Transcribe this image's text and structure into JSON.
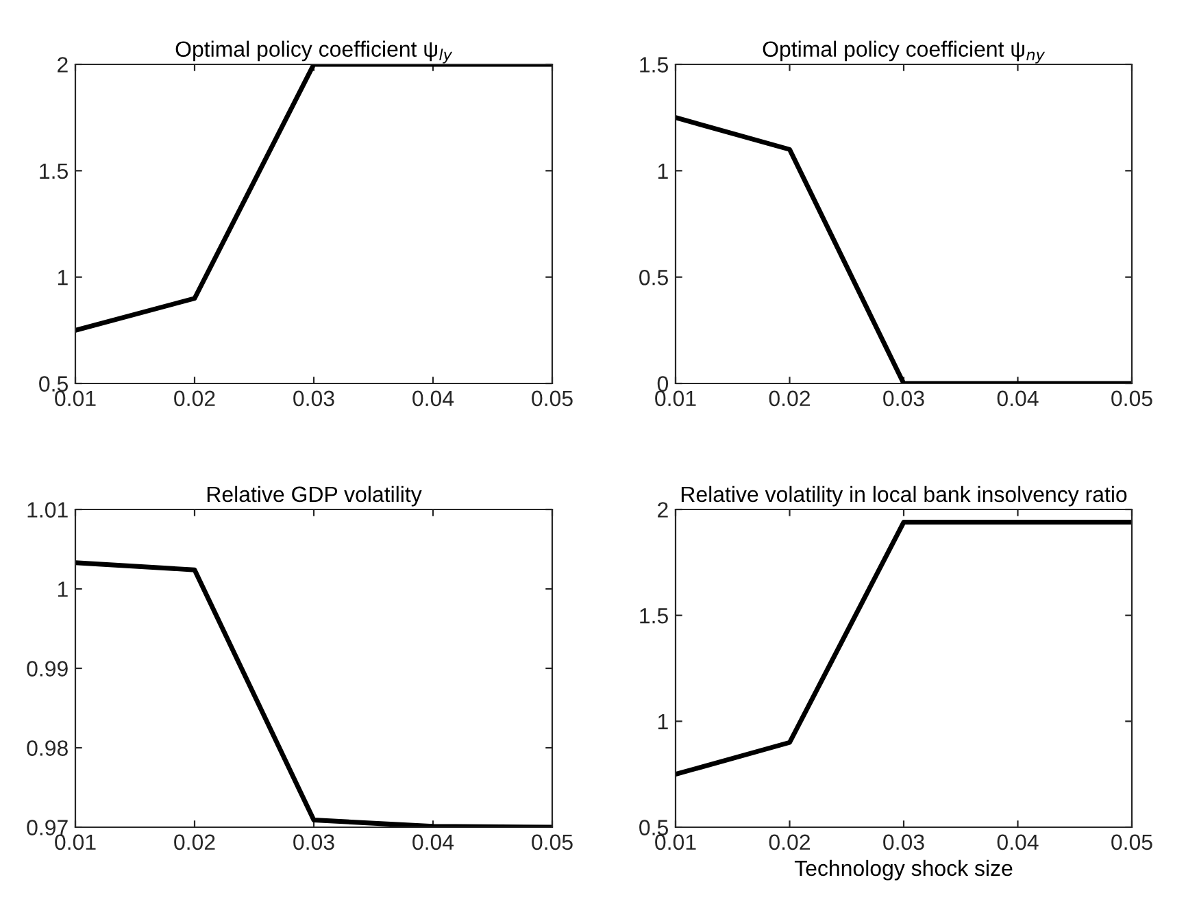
{
  "chart_data": [
    {
      "type": "line",
      "title": "Optimal policy coefficient ψ$_{ly}$",
      "x": [
        0.01,
        0.02,
        0.03,
        0.04,
        0.05
      ],
      "series": [
        {
          "color": "#000000",
          "values": [
            0.75,
            0.9,
            2,
            2,
            2
          ]
        }
      ],
      "xlim": [
        0.01,
        0.05
      ],
      "xticks": [
        0.01,
        0.02,
        0.03,
        0.04,
        0.05
      ],
      "ylim": [
        0.5,
        2
      ],
      "yticks": [
        0.5,
        1,
        1.5,
        2
      ],
      "grid": false,
      "legend": false,
      "marker": "none",
      "line_style": "solid"
    },
    {
      "type": "line",
      "title": "Optimal policy coefficient ψ$_{ny}$",
      "x": [
        0.01,
        0.02,
        0.03,
        0.04,
        0.05
      ],
      "series": [
        {
          "color": "#000000",
          "values": [
            1.25,
            1.1,
            0,
            0,
            0
          ]
        }
      ],
      "xlim": [
        0.01,
        0.05
      ],
      "xticks": [
        0.01,
        0.02,
        0.03,
        0.04,
        0.05
      ],
      "ylim": [
        0,
        1.5
      ],
      "yticks": [
        0,
        0.5,
        1,
        1.5
      ],
      "grid": false,
      "legend": false,
      "marker": "none",
      "line_style": "solid"
    },
    {
      "type": "line",
      "title": "Relative GDP volatility",
      "x": [
        0.01,
        0.02,
        0.03,
        0.04,
        0.05
      ],
      "series": [
        {
          "color": "#000000",
          "values": [
            1.0033,
            1.0024,
            0.9709,
            0.9701,
            0.97
          ]
        }
      ],
      "xlim": [
        0.01,
        0.05
      ],
      "xticks": [
        0.01,
        0.02,
        0.03,
        0.04,
        0.05
      ],
      "ylim": [
        0.97,
        1.01
      ],
      "yticks": [
        0.97,
        0.98,
        0.99,
        1,
        1.01
      ],
      "grid": false,
      "legend": false,
      "marker": "none",
      "line_style": "solid"
    },
    {
      "type": "line",
      "title": "Relative volatility in local bank insolvency ratio",
      "xlabel": "Technology shock size",
      "x": [
        0.01,
        0.02,
        0.03,
        0.04,
        0.05
      ],
      "series": [
        {
          "color": "#000000",
          "values": [
            0.75,
            0.9,
            1.94,
            1.94,
            1.94
          ]
        }
      ],
      "xlim": [
        0.01,
        0.05
      ],
      "xticks": [
        0.01,
        0.02,
        0.03,
        0.04,
        0.05
      ],
      "ylim": [
        0.5,
        2
      ],
      "yticks": [
        0.5,
        1,
        1.5,
        2
      ],
      "grid": false,
      "legend": false,
      "marker": "none",
      "line_style": "solid"
    }
  ]
}
